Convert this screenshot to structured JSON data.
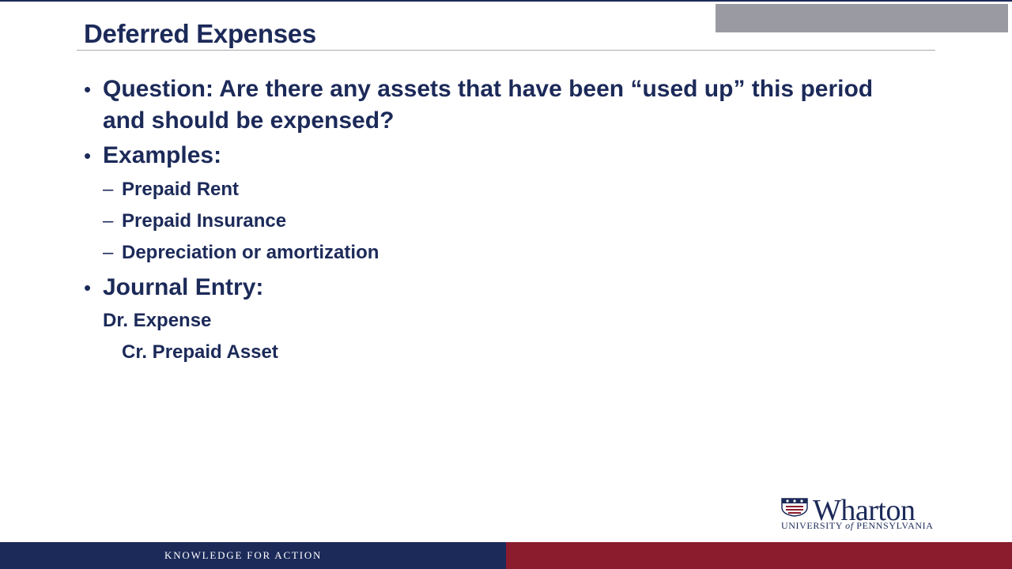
{
  "slide": {
    "title": "Deferred Expenses",
    "bullets": [
      {
        "text": "Question:  Are there any assets that have been “used up” this period and should be expensed?"
      },
      {
        "text": "Examples:",
        "subitems": [
          "Prepaid Rent",
          "Prepaid Insurance",
          "Depreciation or amortization"
        ]
      },
      {
        "text": "Journal Entry:"
      }
    ],
    "journal": {
      "debit": "Dr. Expense",
      "credit": "Cr. Prepaid Asset"
    },
    "bullet_char": "•",
    "dash_char": "–"
  },
  "logo": {
    "name": "Wharton",
    "sub_prefix": "UNIVERSITY ",
    "sub_of": "of",
    "sub_suffix": " PENNSYLVANIA"
  },
  "footer": {
    "tagline": "KNOWLEDGE FOR ACTION"
  },
  "colors": {
    "navy": "#1c2a59",
    "red": "#8a1c2d",
    "gray": "#9a9ba2"
  }
}
